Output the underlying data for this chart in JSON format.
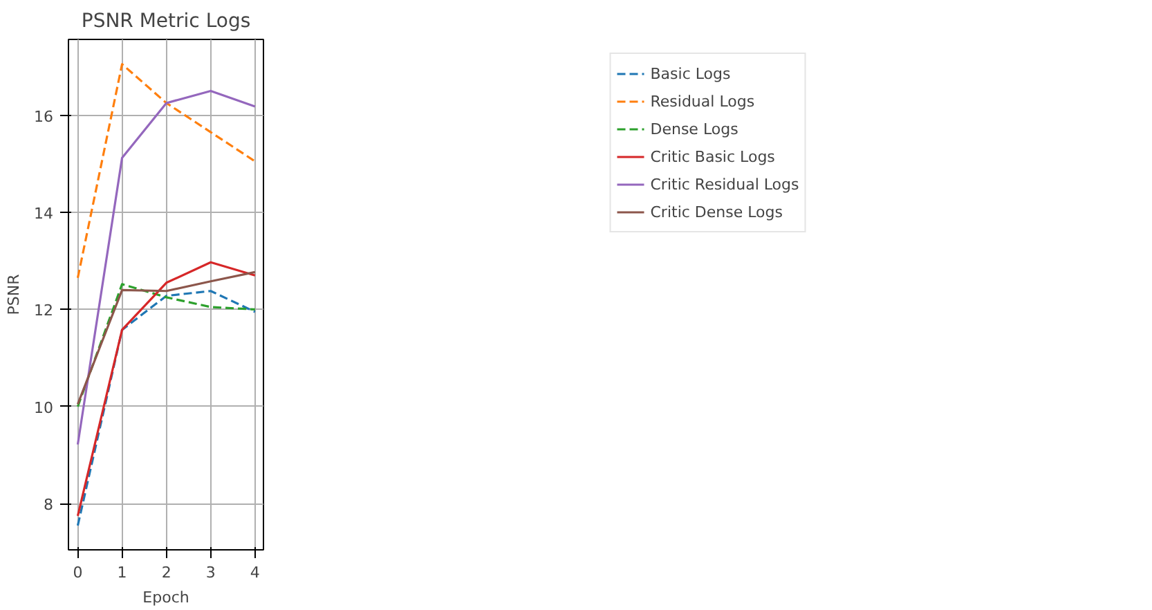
{
  "chart_data": {
    "type": "line",
    "title": "PSNR Metric Logs",
    "xlabel": "Epoch",
    "ylabel": "PSNR",
    "x": [
      0,
      1,
      2,
      3,
      4
    ],
    "xlim": [
      -0.21,
      4.19
    ],
    "ylim": [
      7.05,
      17.56
    ],
    "xticks": [
      0,
      1,
      2,
      3,
      4
    ],
    "yticks": [
      8,
      10,
      12,
      14,
      16
    ],
    "grid": true,
    "legend": "top right",
    "series": [
      {
        "name": "Basic Logs",
        "color": "#1f77b4",
        "line_style": "dashed",
        "values": [
          7.55,
          11.58,
          12.28,
          12.38,
          11.95
        ]
      },
      {
        "name": "Residual Logs",
        "color": "#ff7f0e",
        "line_style": "dashed",
        "values": [
          12.65,
          17.05,
          16.25,
          15.65,
          15.05
        ]
      },
      {
        "name": "Dense Logs",
        "color": "#2ca02c",
        "line_style": "dashed",
        "values": [
          10.0,
          12.52,
          12.25,
          12.05,
          12.0
        ]
      },
      {
        "name": "Critic Basic Logs",
        "color": "#d62728",
        "line_style": "solid",
        "values": [
          7.75,
          11.58,
          12.55,
          12.97,
          12.7
        ]
      },
      {
        "name": "Critic Residual Logs",
        "color": "#9467bd",
        "line_style": "solid",
        "values": [
          9.22,
          15.12,
          16.25,
          16.5,
          16.18
        ]
      },
      {
        "name": "Critic Dense Logs",
        "color": "#8c564b",
        "line_style": "solid",
        "values": [
          10.05,
          12.4,
          12.38,
          12.58,
          12.77
        ]
      }
    ]
  }
}
